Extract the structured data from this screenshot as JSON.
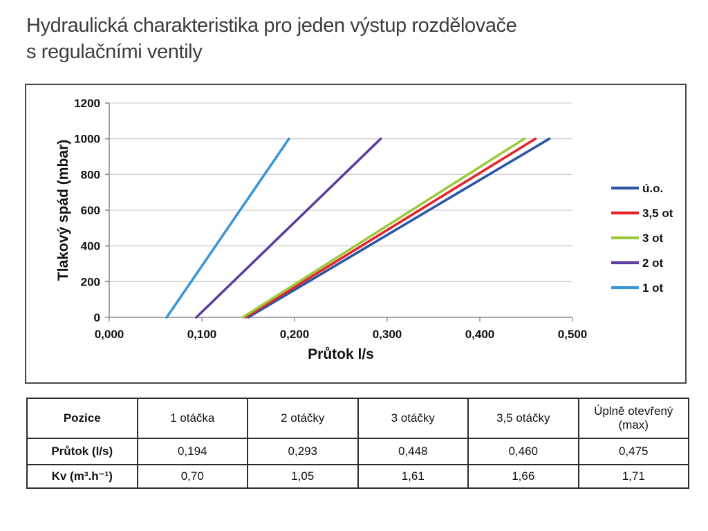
{
  "title": {
    "line1": "Hydraulická charakteristika pro jeden výstup rozdělovače",
    "line2": "s regulačními ventily"
  },
  "chart_data": {
    "type": "line",
    "title": "",
    "xlabel": "Průtok l/s",
    "ylabel": "Tlakový spád (mbar)",
    "xlim": [
      0,
      0.5
    ],
    "ylim": [
      0,
      1200
    ],
    "x_ticks": [
      "0,000",
      "0,100",
      "0,200",
      "0,300",
      "0,400",
      "0,500"
    ],
    "y_ticks": [
      "0",
      "200",
      "400",
      "600",
      "800",
      "1000",
      "1200"
    ],
    "grid": "horizontal",
    "legend_position": "right-inside",
    "colors": {
      "grid": "#c6c6c6",
      "axis": "#8a8a8a",
      "text": "#111111"
    },
    "series": [
      {
        "name": "ú.o.",
        "color": "#2a56a7",
        "points": [
          [
            0.15,
            0
          ],
          [
            0.475,
            1000
          ]
        ]
      },
      {
        "name": "3,5 ot",
        "color": "#e62429",
        "points": [
          [
            0.147,
            0
          ],
          [
            0.46,
            1000
          ]
        ]
      },
      {
        "name": "3 ot",
        "color": "#9cc93d",
        "points": [
          [
            0.144,
            0
          ],
          [
            0.448,
            1000
          ]
        ]
      },
      {
        "name": "2 ot",
        "color": "#5f3d9c",
        "points": [
          [
            0.094,
            0
          ],
          [
            0.293,
            1000
          ]
        ]
      },
      {
        "name": "1 ot",
        "color": "#3c95d5",
        "points": [
          [
            0.062,
            0
          ],
          [
            0.194,
            1000
          ]
        ]
      }
    ]
  },
  "table": {
    "header": [
      "Pozice",
      "1 otáčka",
      "2 otáčky",
      "3 otáčky",
      "3,5 otáčky",
      "Úplně otevřený (max)"
    ],
    "rows": [
      {
        "label": "Průtok (l/s)",
        "values": [
          "0,194",
          "0,293",
          "0,448",
          "0,460",
          "0,475"
        ]
      },
      {
        "label": "Kv (m³.h⁻¹)",
        "values": [
          "0,70",
          "1,05",
          "1,61",
          "1,66",
          "1,71"
        ]
      }
    ]
  }
}
